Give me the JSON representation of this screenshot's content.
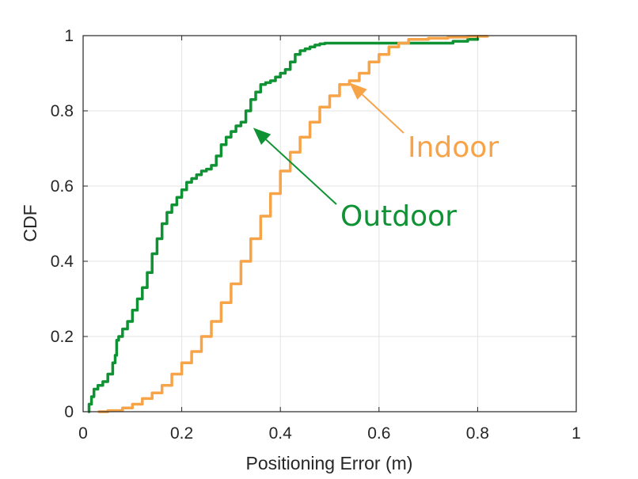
{
  "chart_data": {
    "type": "line",
    "title": "",
    "xlabel": "Positioning Error (m)",
    "ylabel": "CDF",
    "xlim": [
      0,
      1
    ],
    "ylim": [
      0,
      1
    ],
    "xticks": [
      "0",
      "0.2",
      "0.4",
      "0.6",
      "0.8",
      "1"
    ],
    "yticks": [
      "0",
      "0.2",
      "0.4",
      "0.6",
      "0.8",
      "1"
    ],
    "grid": true,
    "series": [
      {
        "name": "Outdoor",
        "color": "#0f9233",
        "x": [
          0.01,
          0.012,
          0.017,
          0.022,
          0.03,
          0.04,
          0.05,
          0.06,
          0.065,
          0.068,
          0.072,
          0.08,
          0.09,
          0.1,
          0.11,
          0.12,
          0.13,
          0.14,
          0.15,
          0.16,
          0.17,
          0.18,
          0.19,
          0.2,
          0.21,
          0.22,
          0.23,
          0.24,
          0.25,
          0.26,
          0.27,
          0.28,
          0.29,
          0.3,
          0.31,
          0.32,
          0.33,
          0.34,
          0.35,
          0.36,
          0.37,
          0.38,
          0.39,
          0.4,
          0.41,
          0.42,
          0.43,
          0.44,
          0.45,
          0.46,
          0.47,
          0.48,
          0.49,
          0.5,
          0.51,
          0.52,
          0.55,
          0.6,
          0.65,
          0.7,
          0.75,
          0.78,
          0.8
        ],
        "y": [
          0,
          0.02,
          0.04,
          0.06,
          0.07,
          0.08,
          0.1,
          0.13,
          0.15,
          0.19,
          0.2,
          0.22,
          0.24,
          0.27,
          0.3,
          0.33,
          0.37,
          0.42,
          0.46,
          0.5,
          0.53,
          0.55,
          0.57,
          0.59,
          0.61,
          0.62,
          0.63,
          0.64,
          0.645,
          0.655,
          0.68,
          0.71,
          0.73,
          0.745,
          0.76,
          0.77,
          0.8,
          0.83,
          0.85,
          0.87,
          0.875,
          0.88,
          0.89,
          0.9,
          0.91,
          0.93,
          0.95,
          0.96,
          0.965,
          0.97,
          0.975,
          0.978,
          0.98,
          0.98,
          0.98,
          0.98,
          0.98,
          0.98,
          0.98,
          0.98,
          0.985,
          0.99,
          1.0
        ]
      },
      {
        "name": "Indoor",
        "color": "#f7a348",
        "x": [
          0.03,
          0.05,
          0.08,
          0.1,
          0.12,
          0.14,
          0.16,
          0.18,
          0.2,
          0.22,
          0.24,
          0.26,
          0.28,
          0.3,
          0.32,
          0.34,
          0.36,
          0.38,
          0.4,
          0.42,
          0.44,
          0.46,
          0.48,
          0.5,
          0.52,
          0.54,
          0.56,
          0.58,
          0.6,
          0.62,
          0.64,
          0.66,
          0.7,
          0.74,
          0.78,
          0.82
        ],
        "y": [
          0,
          0.003,
          0.01,
          0.02,
          0.035,
          0.05,
          0.07,
          0.1,
          0.13,
          0.16,
          0.2,
          0.24,
          0.29,
          0.34,
          0.4,
          0.46,
          0.52,
          0.58,
          0.64,
          0.69,
          0.73,
          0.77,
          0.81,
          0.84,
          0.87,
          0.88,
          0.9,
          0.93,
          0.95,
          0.97,
          0.98,
          0.99,
          0.993,
          0.996,
          0.998,
          1.0
        ]
      }
    ],
    "annotations": [
      {
        "text": "Indoor",
        "color": "#f7a348",
        "arrow_to": [
          0.54,
          0.875
        ]
      },
      {
        "text": "Outdoor",
        "color": "#0f9233",
        "arrow_to": [
          0.345,
          0.755
        ]
      }
    ]
  }
}
